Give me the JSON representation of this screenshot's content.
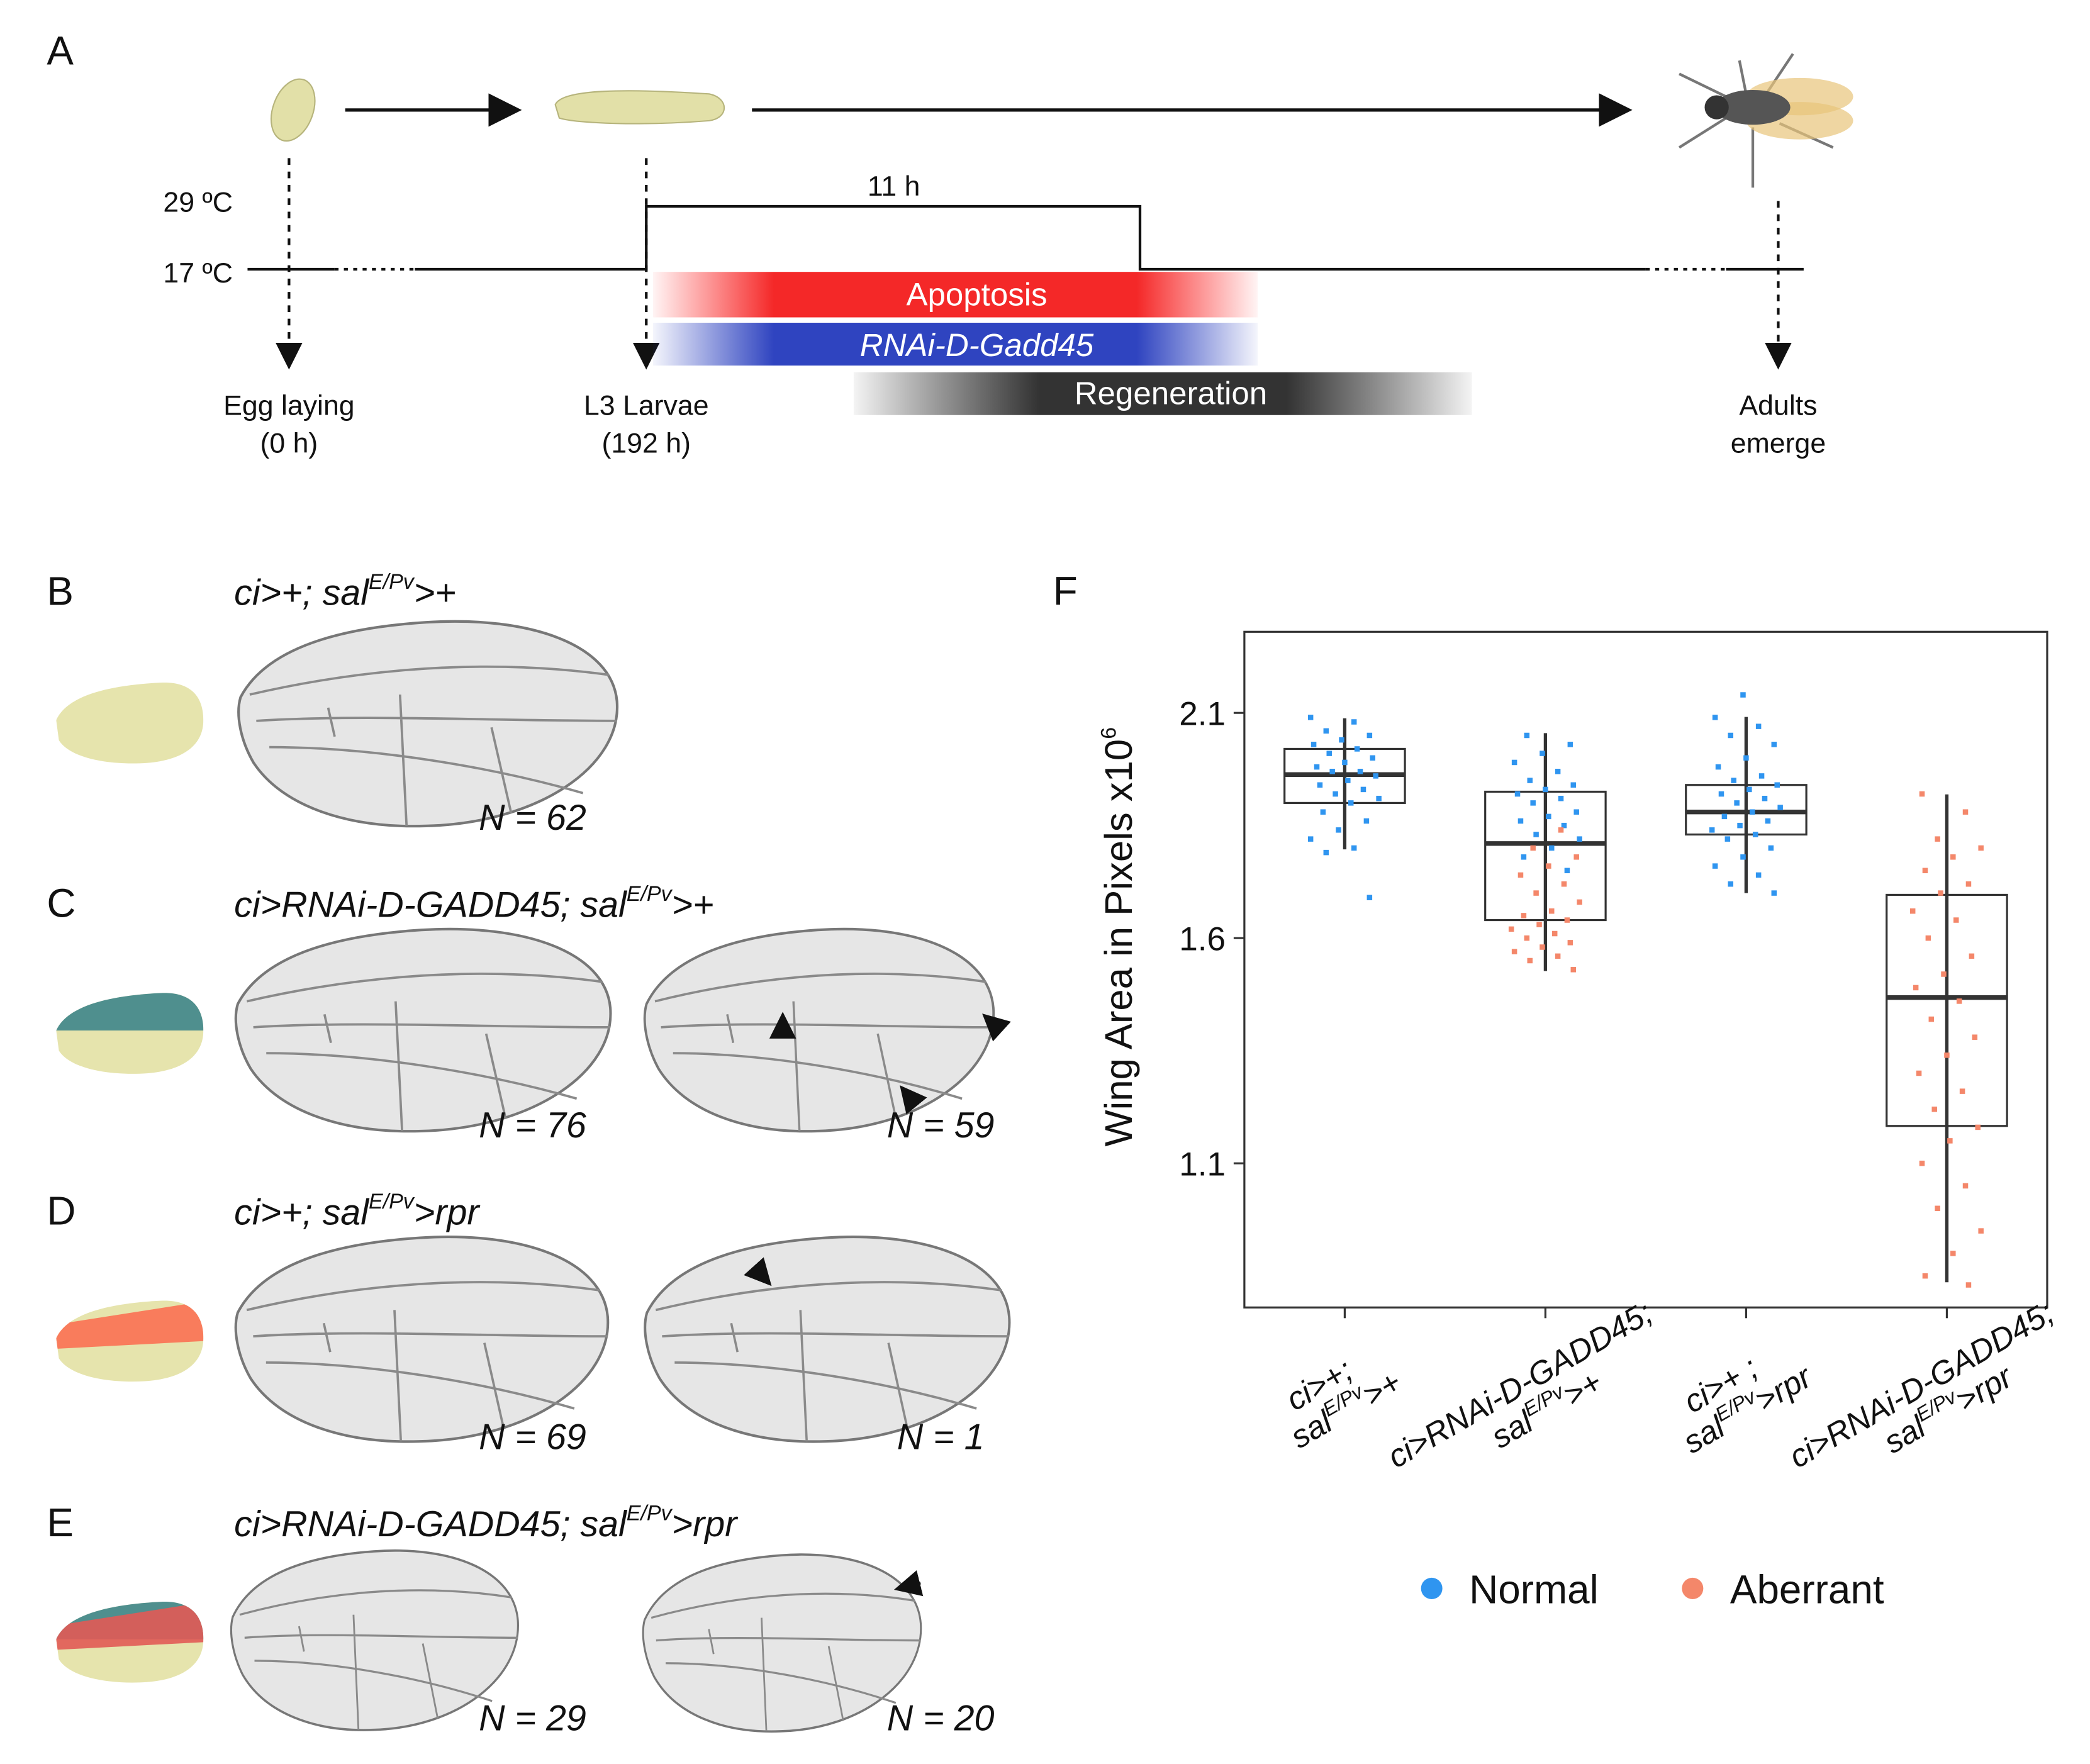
{
  "panel_a": {
    "label": "A",
    "temp_high": "29 ºC",
    "temp_low": "17 ºC",
    "duration": "11 h",
    "bars": [
      "Apoptosis",
      "RNAi-D-Gadd45",
      "Regeneration"
    ],
    "stages": [
      {
        "line1": "Egg laying",
        "line2": "(0 h)"
      },
      {
        "line1": "L3 Larvae",
        "line2": "(192 h)"
      },
      {
        "line1": "Adults",
        "line2": "emerge"
      }
    ]
  },
  "panels": [
    {
      "label": "B",
      "genotype": {
        "pre": "ci>+; sal",
        "sup": "E/Pv",
        "post": ">+"
      },
      "counts": [
        {
          "text": "N = 62",
          "color": "#3d9be9"
        }
      ]
    },
    {
      "label": "C",
      "genotype": {
        "pre": "ci>RNAi-D-GADD45; sal",
        "sup": "E/Pv",
        "post": ">+"
      },
      "counts": [
        {
          "text": "N = 76",
          "color": "#3d9be9"
        },
        {
          "text": "N = 59",
          "color": "#f4876a"
        }
      ]
    },
    {
      "label": "D",
      "genotype": {
        "pre": "ci>+; sal",
        "sup": "E/Pv",
        "post": ">rpr"
      },
      "counts": [
        {
          "text": "N = 69",
          "color": "#3d9be9"
        },
        {
          "text": "N = 1",
          "color": "#f4876a"
        }
      ]
    },
    {
      "label": "E",
      "genotype": {
        "pre": "ci>RNAi-D-GADD45; sal",
        "sup": "E/Pv",
        "post": ">rpr"
      },
      "counts": [
        {
          "text": "N = 29",
          "color": "#f4876a"
        },
        {
          "text": "N = 20",
          "color": "#f4876a"
        }
      ]
    }
  ],
  "chart_data": {
    "type": "box",
    "label": "F",
    "ylabel": {
      "pre": "Wing Area in Pixels x10",
      "sup": "6"
    },
    "ylim": [
      0.78,
      2.28
    ],
    "yticks": [
      1.1,
      1.6,
      2.1
    ],
    "categories": [
      {
        "line1": "ci>+;",
        "line2": {
          "pre": "sal",
          "sup": "E/Pv",
          "post": ">+"
        }
      },
      {
        "line1": "ci>RNAi-D-GADD45;",
        "line2": {
          "pre": "sal",
          "sup": "E/Pv",
          "post": ">+"
        }
      },
      {
        "line1": "ci>+ ;",
        "line2": {
          "pre": "sal",
          "sup": "E/Pv",
          "post": ">rpr"
        }
      },
      {
        "line1": "ci>RNAi-D-GADD45;",
        "line2": {
          "pre": "sal",
          "sup": "E/Pv",
          "post": ">rpr"
        }
      }
    ],
    "boxes": [
      {
        "whislo": 1.797,
        "q1": 1.9,
        "med": 1.963,
        "q3": 2.02,
        "whishi": 2.088
      },
      {
        "whislo": 1.527,
        "q1": 1.64,
        "med": 1.81,
        "q3": 1.925,
        "whishi": 2.055
      },
      {
        "whislo": 1.7,
        "q1": 1.83,
        "med": 1.88,
        "q3": 1.94,
        "whishi": 2.091
      },
      {
        "whislo": 0.836,
        "q1": 1.183,
        "med": 1.468,
        "q3": 1.696,
        "whishi": 1.919
      }
    ],
    "series": [
      {
        "name": "Normal",
        "color": "#2f95f0",
        "values": [
          [
            2.09,
            2.08,
            2.06,
            2.05,
            2.04,
            2.03,
            2.02,
            2.01,
            2.0,
            1.99,
            1.98,
            1.97,
            1.97,
            1.96,
            1.95,
            1.94,
            1.93,
            1.92,
            1.91,
            1.9,
            1.88,
            1.86,
            1.84,
            1.82,
            1.8,
            1.79,
            1.69
          ],
          [
            2.05,
            2.03,
            2.01,
            1.99,
            1.97,
            1.95,
            1.94,
            1.93,
            1.92,
            1.91,
            1.9,
            1.88,
            1.87,
            1.86,
            1.85,
            1.83,
            1.82,
            1.8,
            1.78,
            1.75
          ],
          [
            2.14,
            2.09,
            2.07,
            2.05,
            2.03,
            2.0,
            1.98,
            1.96,
            1.95,
            1.94,
            1.93,
            1.92,
            1.91,
            1.9,
            1.89,
            1.88,
            1.87,
            1.86,
            1.85,
            1.84,
            1.83,
            1.82,
            1.8,
            1.78,
            1.76,
            1.74,
            1.72,
            1.7
          ],
          []
        ]
      },
      {
        "name": "Aberrant",
        "color": "#f4876a",
        "values": [
          [],
          [
            1.84,
            1.8,
            1.78,
            1.76,
            1.74,
            1.72,
            1.7,
            1.68,
            1.66,
            1.65,
            1.64,
            1.63,
            1.62,
            1.61,
            1.6,
            1.59,
            1.58,
            1.57,
            1.56,
            1.55,
            1.53
          ],
          [],
          [
            1.92,
            1.88,
            1.82,
            1.8,
            1.78,
            1.75,
            1.72,
            1.7,
            1.66,
            1.64,
            1.6,
            1.56,
            1.52,
            1.49,
            1.46,
            1.42,
            1.38,
            1.34,
            1.3,
            1.26,
            1.22,
            1.18,
            1.15,
            1.1,
            1.05,
            1.0,
            0.95,
            0.9,
            0.85,
            0.83
          ]
        ]
      }
    ],
    "legend": "bottom"
  }
}
